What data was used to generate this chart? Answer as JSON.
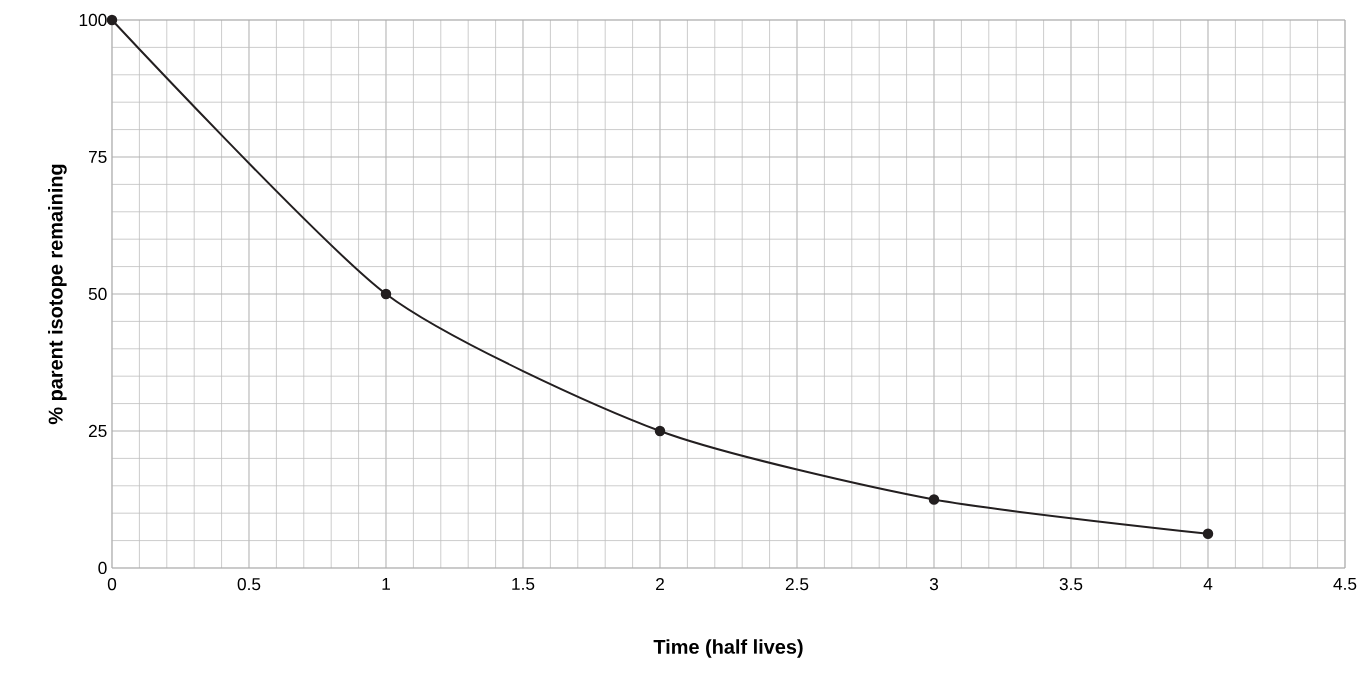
{
  "chart_data": {
    "type": "line",
    "xlabel": "Time (half lives)",
    "ylabel": "% parent isotope remaining",
    "x": [
      0,
      1,
      2,
      3,
      4
    ],
    "series": [
      {
        "color": "#231f20",
        "values": [
          100,
          50,
          25,
          12.5,
          6.25
        ]
      }
    ],
    "xlim": [
      0,
      4.5
    ],
    "ylim": [
      0,
      100
    ],
    "xticks": [
      0,
      0.5,
      1,
      1.5,
      2,
      2.5,
      3,
      3.5,
      4,
      4.5
    ],
    "yticks": [
      0,
      25,
      50,
      75,
      100
    ],
    "grid": true,
    "marker": "circle",
    "line_style": "solid"
  }
}
